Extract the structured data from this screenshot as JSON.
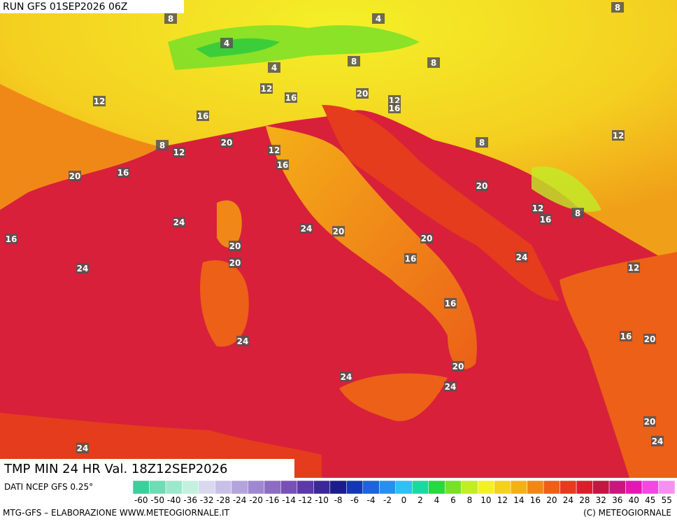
{
  "header": {
    "run": "RUN GFS 01SEP2026 06Z"
  },
  "map": {
    "contour_labels": [
      4,
      4,
      4,
      8,
      8,
      8,
      8,
      8,
      8,
      8,
      12,
      12,
      12,
      12,
      12,
      12,
      12,
      12,
      16,
      16,
      16,
      16,
      16,
      16,
      16,
      16,
      16,
      16,
      20,
      20,
      20,
      20,
      20,
      20,
      20,
      20,
      20,
      20,
      20,
      24,
      24,
      24,
      24,
      24,
      24,
      24,
      24,
      24
    ]
  },
  "footer": {
    "title": "TMP MIN 24 HR Val. 18Z12SEP2026",
    "source": "DATI NCEP GFS 0.25°",
    "credit": "MTG-GFS – ELABORAZIONE WWW.METEOGIORNALE.IT",
    "copyright": "(C) METEOGIORNALE"
  },
  "scale": {
    "labels": [
      -60,
      -50,
      -40,
      -36,
      -32,
      -28,
      -24,
      -20,
      -16,
      -14,
      -12,
      -10,
      -8,
      -6,
      -4,
      -2,
      0,
      2,
      4,
      6,
      8,
      10,
      12,
      14,
      16,
      20,
      24,
      28,
      32,
      36,
      40,
      45,
      55
    ],
    "colors": [
      "#3ccf9c",
      "#6edcb4",
      "#9ce8cc",
      "#c4f0e0",
      "#d8d8f0",
      "#c8c0e8",
      "#b4a4dc",
      "#a088d0",
      "#8c6cc4",
      "#7850b8",
      "#5c38a8",
      "#3c2898",
      "#1c1c8c",
      "#1438b4",
      "#1c64d8",
      "#2890ec",
      "#30c0f4",
      "#1cd8a0",
      "#28d840",
      "#78e028",
      "#c0ec28",
      "#f4f028",
      "#f4d020",
      "#f4b018",
      "#f08818",
      "#ec6018",
      "#e43c1c",
      "#d8202c",
      "#c01840",
      "#c81880",
      "#e018b8",
      "#f048e0",
      "#f890f0"
    ]
  }
}
